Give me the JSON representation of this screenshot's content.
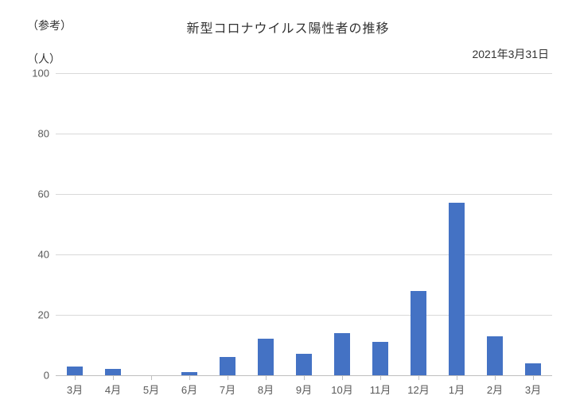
{
  "note": "（参考）",
  "title": "新型コロナウイルス陽性者の推移",
  "date": "2021年3月31日",
  "y_unit": "（人）",
  "chart": {
    "type": "bar",
    "categories": [
      "3月",
      "4月",
      "5月",
      "6月",
      "7月",
      "8月",
      "9月",
      "10月",
      "11月",
      "12月",
      "1月",
      "2月",
      "3月"
    ],
    "values": [
      3,
      2,
      0,
      1,
      6,
      12,
      7,
      14,
      11,
      28,
      57,
      13,
      4
    ],
    "bar_color": "#4472c4",
    "background_color": "#ffffff",
    "grid_color": "#d9d9d9",
    "axis_color": "#bfbfbf",
    "ylim": [
      0,
      100
    ],
    "ytick_step": 20,
    "bar_width": 0.42,
    "label_fontsize": 13,
    "title_fontsize": 16,
    "text_color": "#595959"
  }
}
